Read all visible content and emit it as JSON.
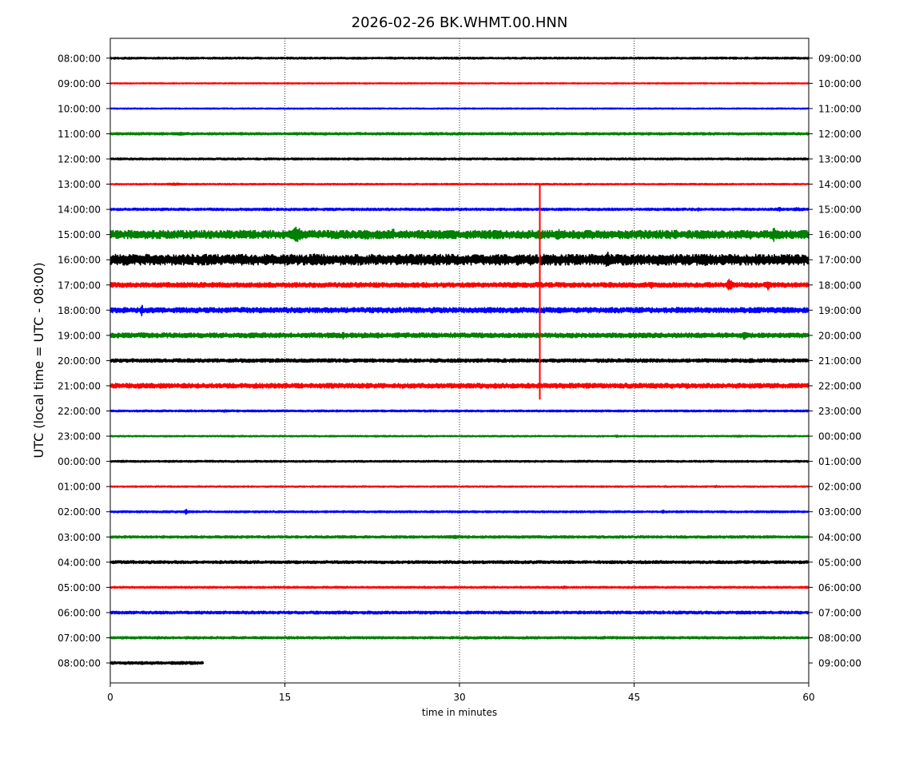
{
  "chart_data": {
    "type": "line",
    "title": "2026-02-26 BK.WHMT.00.HNN",
    "xlabel": "time in minutes",
    "ylabel": "UTC (local time = UTC - 08:00)",
    "xlim": [
      0,
      60
    ],
    "x_ticks": [
      0,
      15,
      30,
      45,
      60
    ],
    "grid": "vertical dotted lines at 15, 30, 45",
    "legend": "none",
    "series_colors": [
      "#000000",
      "#ff0000",
      "#0000ff",
      "#008000"
    ],
    "left_labels": [
      "08:00:00",
      "09:00:00",
      "10:00:00",
      "11:00:00",
      "12:00:00",
      "13:00:00",
      "14:00:00",
      "15:00:00",
      "16:00:00",
      "17:00:00",
      "18:00:00",
      "19:00:00",
      "20:00:00",
      "21:00:00",
      "22:00:00",
      "23:00:00",
      "00:00:00",
      "01:00:00",
      "02:00:00",
      "03:00:00",
      "04:00:00",
      "05:00:00",
      "06:00:00",
      "07:00:00",
      "08:00:00"
    ],
    "right_labels": [
      "09:00:00",
      "10:00:00",
      "11:00:00",
      "12:00:00",
      "13:00:00",
      "14:00:00",
      "15:00:00",
      "16:00:00",
      "17:00:00",
      "18:00:00",
      "19:00:00",
      "20:00:00",
      "21:00:00",
      "22:00:00",
      "23:00:00",
      "00:00:00",
      "01:00:00",
      "02:00:00",
      "03:00:00",
      "04:00:00",
      "05:00:00",
      "06:00:00",
      "07:00:00",
      "08:00:00",
      "09:00:00"
    ],
    "traces": [
      {
        "row": 0,
        "end_minute": 60,
        "activity": 0.08,
        "events": []
      },
      {
        "row": 1,
        "end_minute": 60,
        "activity": 0.05,
        "events": []
      },
      {
        "row": 2,
        "end_minute": 60,
        "activity": 0.05,
        "events": []
      },
      {
        "row": 3,
        "end_minute": 60,
        "activity": 0.1,
        "events": [
          {
            "t": 6.0,
            "amp": 0.12,
            "dur": 1.5
          }
        ]
      },
      {
        "row": 4,
        "end_minute": 60,
        "activity": 0.08,
        "events": []
      },
      {
        "row": 5,
        "end_minute": 60,
        "activity": 0.06,
        "events": [
          {
            "t": 5.5,
            "amp": 0.12,
            "dur": 1.2
          }
        ]
      },
      {
        "row": 6,
        "end_minute": 60,
        "activity": 0.1,
        "events": [
          {
            "t": 50.5,
            "amp": 0.15,
            "dur": 0.3
          },
          {
            "t": 57.5,
            "amp": 0.2,
            "dur": 0.4
          },
          {
            "t": 59.0,
            "amp": 0.15,
            "dur": 1.0
          }
        ]
      },
      {
        "row": 7,
        "end_minute": 60,
        "activity": 0.35,
        "events": [
          {
            "t": 16.0,
            "amp": 0.75,
            "dur": 0.8
          },
          {
            "t": 22.0,
            "amp": 0.5,
            "dur": 0.6
          },
          {
            "t": 24.3,
            "amp": 0.6,
            "dur": 0.2
          },
          {
            "t": 38.5,
            "amp": 0.5,
            "dur": 0.6
          },
          {
            "t": 50.5,
            "amp": 0.3,
            "dur": 0.5
          },
          {
            "t": 55.0,
            "amp": 0.45,
            "dur": 0.5
          },
          {
            "t": 57.0,
            "amp": 0.6,
            "dur": 0.4
          },
          {
            "t": 59.7,
            "amp": 0.5,
            "dur": 0.4
          }
        ]
      },
      {
        "row": 8,
        "end_minute": 60,
        "activity": 0.45,
        "events": [
          {
            "t": 17.5,
            "amp": 0.55,
            "dur": 0.5
          },
          {
            "t": 28.3,
            "amp": 0.45,
            "dur": 0.4
          },
          {
            "t": 33.0,
            "amp": 0.4,
            "dur": 1.0
          },
          {
            "t": 42.7,
            "amp": 0.7,
            "dur": 0.6
          },
          {
            "t": 47.5,
            "amp": 0.45,
            "dur": 1.0
          },
          {
            "t": 49.5,
            "amp": 0.45,
            "dur": 0.8
          },
          {
            "t": 51.0,
            "amp": 0.6,
            "dur": 1.0
          }
        ]
      },
      {
        "row": 9,
        "end_minute": 60,
        "activity": 0.2,
        "events": [
          {
            "t": 23.0,
            "amp": 0.2,
            "dur": 0.3
          },
          {
            "t": 46.5,
            "amp": 0.3,
            "dur": 0.3
          },
          {
            "t": 53.2,
            "amp": 0.55,
            "dur": 0.5
          },
          {
            "t": 56.5,
            "amp": 0.45,
            "dur": 0.5
          }
        ]
      },
      {
        "row": 10,
        "end_minute": 60,
        "activity": 0.22,
        "events": [
          {
            "t": 2.7,
            "amp": 0.55,
            "dur": 0.2
          },
          {
            "t": 12.3,
            "amp": 0.25,
            "dur": 0.3
          },
          {
            "t": 23.0,
            "amp": 0.2,
            "dur": 1.0
          },
          {
            "t": 49.5,
            "amp": 0.25,
            "dur": 0.7
          }
        ]
      },
      {
        "row": 11,
        "end_minute": 60,
        "activity": 0.2,
        "events": [
          {
            "t": 1.2,
            "amp": 0.2,
            "dur": 1.0
          },
          {
            "t": 20.0,
            "amp": 0.35,
            "dur": 0.2
          },
          {
            "t": 23.0,
            "amp": 0.3,
            "dur": 0.3
          },
          {
            "t": 54.5,
            "amp": 0.5,
            "dur": 0.3
          }
        ]
      },
      {
        "row": 12,
        "end_minute": 60,
        "activity": 0.15,
        "events": [
          {
            "t": 8.5,
            "amp": 0.15,
            "dur": 0.3
          },
          {
            "t": 35.0,
            "amp": 0.15,
            "dur": 0.3
          },
          {
            "t": 49.5,
            "amp": 0.15,
            "dur": 0.3
          },
          {
            "t": 55.0,
            "amp": 0.2,
            "dur": 0.6
          }
        ]
      },
      {
        "row": 13,
        "end_minute": 60,
        "activity": 0.2,
        "events": [
          {
            "t": 4.5,
            "amp": 0.15,
            "dur": 1.5
          },
          {
            "t": 18.0,
            "amp": 0.2,
            "dur": 0.4
          },
          {
            "t": 26.0,
            "amp": 0.15,
            "dur": 1.0
          },
          {
            "t": 30.0,
            "amp": 0.2,
            "dur": 0.5
          },
          {
            "t": 35.5,
            "amp": 0.2,
            "dur": 0.3
          },
          {
            "t": 45.5,
            "amp": 0.2,
            "dur": 0.4
          }
        ]
      },
      {
        "row": 14,
        "end_minute": 60,
        "activity": 0.08,
        "events": [
          {
            "t": 9.8,
            "amp": 0.12,
            "dur": 0.6
          }
        ]
      },
      {
        "row": 15,
        "end_minute": 60,
        "activity": 0.06,
        "events": [
          {
            "t": 10.5,
            "amp": 0.08,
            "dur": 0.6
          },
          {
            "t": 43.5,
            "amp": 0.1,
            "dur": 0.4
          },
          {
            "t": 54.0,
            "amp": 0.1,
            "dur": 0.6
          }
        ]
      },
      {
        "row": 16,
        "end_minute": 60,
        "activity": 0.08,
        "events": []
      },
      {
        "row": 17,
        "end_minute": 60,
        "activity": 0.06,
        "events": [
          {
            "t": 52.0,
            "amp": 0.12,
            "dur": 0.2
          }
        ]
      },
      {
        "row": 18,
        "end_minute": 60,
        "activity": 0.08,
        "events": [
          {
            "t": 6.5,
            "amp": 0.3,
            "dur": 0.2
          },
          {
            "t": 47.5,
            "amp": 0.15,
            "dur": 0.3
          }
        ]
      },
      {
        "row": 19,
        "end_minute": 60,
        "activity": 0.1,
        "events": [
          {
            "t": 20.0,
            "amp": 0.12,
            "dur": 0.8
          },
          {
            "t": 26.0,
            "amp": 0.12,
            "dur": 0.6
          },
          {
            "t": 29.5,
            "amp": 0.15,
            "dur": 1.2
          }
        ]
      },
      {
        "row": 20,
        "end_minute": 60,
        "activity": 0.12,
        "events": [
          {
            "t": 39.5,
            "amp": 0.12,
            "dur": 1.5
          },
          {
            "t": 48.0,
            "amp": 0.1,
            "dur": 2.0
          }
        ]
      },
      {
        "row": 21,
        "end_minute": 60,
        "activity": 0.08,
        "events": [
          {
            "t": 6.5,
            "amp": 0.1,
            "dur": 0.6
          },
          {
            "t": 39.0,
            "amp": 0.12,
            "dur": 0.6
          }
        ]
      },
      {
        "row": 22,
        "end_minute": 60,
        "activity": 0.12,
        "events": [
          {
            "t": 54.0,
            "amp": 0.12,
            "dur": 1.0
          }
        ]
      },
      {
        "row": 23,
        "end_minute": 60,
        "activity": 0.1,
        "events": [
          {
            "t": 1.0,
            "amp": 0.12,
            "dur": 0.5
          }
        ]
      },
      {
        "row": 24,
        "end_minute": 8,
        "activity": 0.12,
        "events": []
      }
    ],
    "global_event": {
      "minute": 36.9,
      "from_row": 5,
      "to_row": 13.55,
      "color": "#ff0000"
    }
  }
}
